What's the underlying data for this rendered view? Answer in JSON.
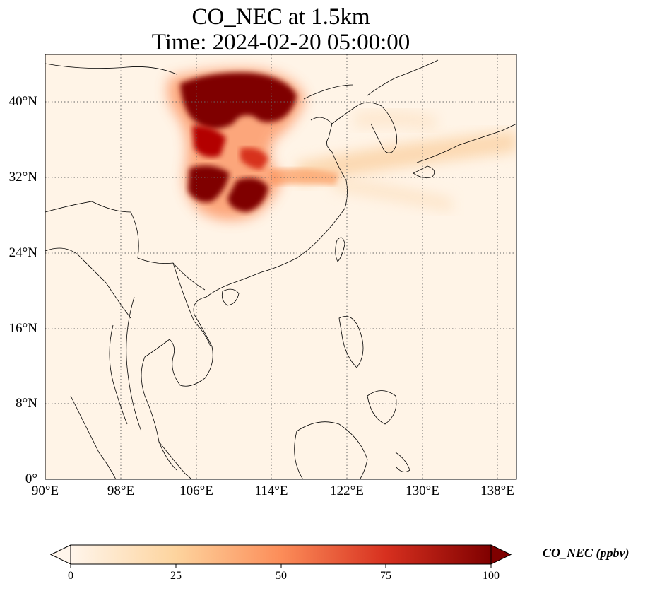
{
  "header": {
    "title_line1": "CO_NEC at 1.5km",
    "title_line2": "Time: 2024-02-20 05:00:00"
  },
  "axes": {
    "lat_ticks": [
      "40°N",
      "32°N",
      "24°N",
      "16°N",
      "8°N",
      "0°"
    ],
    "lon_ticks": [
      "90°E",
      "98°E",
      "106°E",
      "114°E",
      "122°E",
      "130°E",
      "138°E"
    ],
    "lon_range": [
      90,
      140
    ],
    "lat_range": [
      0,
      45
    ],
    "grid": "dotted"
  },
  "colorbar": {
    "label": "CO_NEC (ppbv)",
    "ticks": [
      "0",
      "25",
      "50",
      "75",
      "100"
    ],
    "range": [
      0,
      100
    ],
    "extend": "both",
    "colormap": [
      "#fff5eb",
      "#fdd49e",
      "#fc8d59",
      "#d7301f",
      "#7f0000"
    ]
  }
}
